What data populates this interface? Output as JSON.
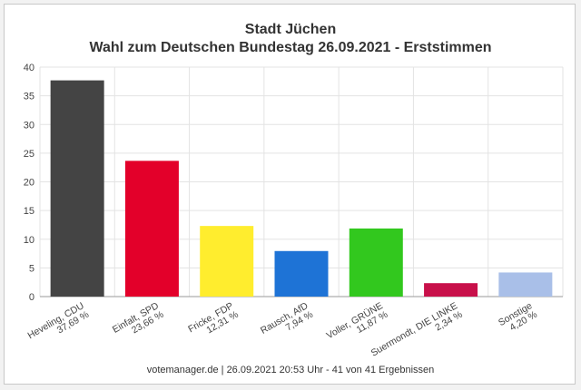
{
  "chart_data": {
    "type": "bar",
    "title": "Stadt Jüchen",
    "subtitle": "Wahl zum Deutschen Bundestag 26.09.2021  - Erststimmen",
    "categories": [
      {
        "name": "Heveling, CDU",
        "pct": "37,69 %"
      },
      {
        "name": "Einfalt, SPD",
        "pct": "23,66 %"
      },
      {
        "name": "Fricke, FDP",
        "pct": "12,31 %"
      },
      {
        "name": "Rausch, AfD",
        "pct": "7,94 %"
      },
      {
        "name": "Voller, GRÜNE",
        "pct": "11,87 %"
      },
      {
        "name": "Suermondt, DIE LINKE",
        "pct": "2,34 %"
      },
      {
        "name": "Sonstige",
        "pct": "4,20 %"
      }
    ],
    "values": [
      37.69,
      23.66,
      12.31,
      7.94,
      11.87,
      2.34,
      4.2
    ],
    "colors": [
      "#444444",
      "#e3002a",
      "#ffed2e",
      "#1e73d6",
      "#32c81e",
      "#c8104a",
      "#a9bfe8"
    ],
    "ylim": [
      0,
      40
    ],
    "yticks": [
      "0",
      "5",
      "10",
      "15",
      "20",
      "25",
      "30",
      "35",
      "40"
    ],
    "grid": true
  },
  "footer": "votemanager.de | 26.09.2021 20:53 Uhr - 41 von 41 Ergebnissen"
}
